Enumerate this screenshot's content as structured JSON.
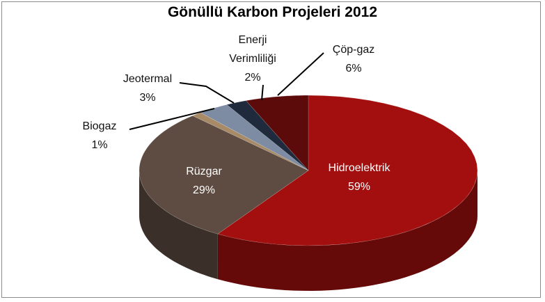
{
  "chart_data": {
    "type": "pie",
    "title": "Gönüllü Karbon Projeleri 2012",
    "categories": [
      "Hidroelektrik",
      "Rüzgar",
      "Biogaz",
      "Jeotermal",
      "Enerji Verimliliği",
      "Çöp-gaz"
    ],
    "values": [
      59,
      29,
      1,
      3,
      2,
      6
    ],
    "value_labels": [
      "59%",
      "29%",
      "1%",
      "3%",
      "2%",
      "6%"
    ],
    "colors": [
      "#a30f0f",
      "#5e4c42",
      "#a88a66",
      "#7d8ca3",
      "#1f2b3d",
      "#5c0a0a"
    ]
  }
}
